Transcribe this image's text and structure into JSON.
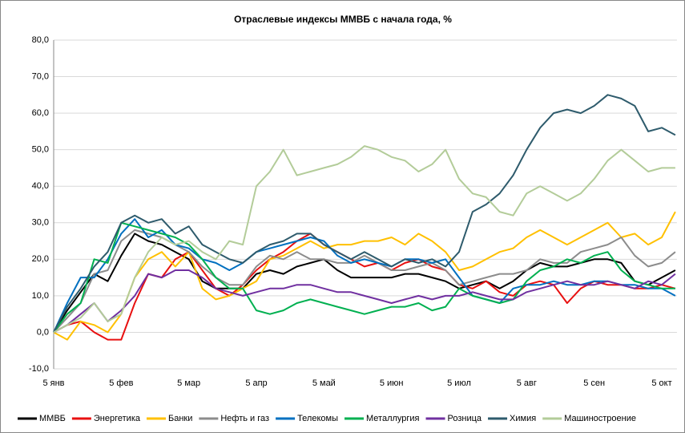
{
  "chart_data": {
    "type": "line",
    "title": "Отраслевые индексы ММВБ с начала года, %",
    "categories": [
      "5 янв",
      null,
      null,
      null,
      null,
      "5 фев",
      null,
      null,
      null,
      null,
      "5 мар",
      null,
      null,
      null,
      null,
      "5 апр",
      null,
      null,
      null,
      null,
      "5 май",
      null,
      null,
      null,
      null,
      "5 июн",
      null,
      null,
      null,
      null,
      "5 июл",
      null,
      null,
      null,
      null,
      "5 авг",
      null,
      null,
      null,
      null,
      "5 сен",
      null,
      null,
      null,
      null,
      "5 окт",
      null
    ],
    "ylim": [
      -10,
      80
    ],
    "yticks": [
      {
        "value": -10,
        "label": "-10,0"
      },
      {
        "value": 0,
        "label": "0,0"
      },
      {
        "value": 10,
        "label": "10,0"
      },
      {
        "value": 20,
        "label": "20,0"
      },
      {
        "value": 30,
        "label": "30,0"
      },
      {
        "value": 40,
        "label": "40,0"
      },
      {
        "value": 50,
        "label": "50,0"
      },
      {
        "value": 60,
        "label": "60,0"
      },
      {
        "value": 70,
        "label": "70,0"
      },
      {
        "value": 80,
        "label": "80,0"
      }
    ],
    "grid": true,
    "legend": "bottom",
    "series": [
      {
        "name": "ММВБ",
        "color": "#000000",
        "values": [
          0,
          6,
          11,
          16,
          14,
          21,
          27,
          25,
          24,
          22,
          20,
          14,
          12,
          12,
          12,
          16,
          17,
          16,
          18,
          19,
          20,
          17,
          15,
          15,
          15,
          15,
          16,
          16,
          15,
          14,
          12,
          13,
          14,
          12,
          14,
          17,
          19,
          18,
          18,
          19,
          20,
          20,
          19,
          14,
          13,
          15,
          17
        ]
      },
      {
        "name": "Энергетика",
        "color": "#e81010",
        "values": [
          0,
          2,
          3,
          0,
          -2,
          -2,
          8,
          16,
          15,
          20,
          22,
          17,
          12,
          10,
          13,
          17,
          20,
          22,
          25,
          27,
          24,
          22,
          20,
          18,
          19,
          17,
          19,
          20,
          18,
          17,
          13,
          12,
          14,
          11,
          10,
          13,
          14,
          13,
          8,
          12,
          14,
          13,
          13,
          12,
          12,
          13,
          12
        ]
      },
      {
        "name": "Банки",
        "color": "#ffc000",
        "values": [
          0,
          -2,
          3,
          2,
          0,
          5,
          15,
          20,
          22,
          18,
          22,
          12,
          9,
          10,
          12,
          14,
          20,
          21,
          23,
          25,
          23,
          24,
          24,
          25,
          25,
          26,
          24,
          27,
          25,
          22,
          17,
          18,
          20,
          22,
          23,
          26,
          28,
          26,
          24,
          26,
          28,
          30,
          26,
          27,
          24,
          26,
          33
        ]
      },
      {
        "name": "Нефть и газ",
        "color": "#8c8c8c",
        "values": [
          0,
          4,
          8,
          16,
          17,
          25,
          28,
          27,
          26,
          24,
          22,
          18,
          15,
          13,
          13,
          18,
          21,
          20,
          22,
          20,
          20,
          19,
          19,
          21,
          19,
          17,
          17,
          18,
          19,
          17,
          13,
          14,
          15,
          16,
          16,
          17,
          20,
          19,
          19,
          22,
          23,
          24,
          26,
          21,
          18,
          19,
          22
        ]
      },
      {
        "name": "Телекомы",
        "color": "#0070c0",
        "values": [
          0,
          8,
          15,
          15,
          20,
          27,
          31,
          26,
          28,
          24,
          23,
          20,
          19,
          17,
          19,
          22,
          23,
          24,
          25,
          26,
          25,
          21,
          19,
          20,
          19,
          18,
          20,
          20,
          19,
          20,
          15,
          10,
          9,
          8,
          12,
          13,
          13,
          14,
          13,
          13,
          14,
          14,
          13,
          13,
          12,
          12,
          10
        ]
      },
      {
        "name": "Металлургия",
        "color": "#00b050",
        "values": [
          0,
          5,
          8,
          20,
          19,
          30,
          29,
          28,
          27,
          26,
          24,
          20,
          15,
          12,
          12,
          6,
          5,
          6,
          8,
          9,
          8,
          7,
          6,
          5,
          6,
          7,
          7,
          8,
          6,
          7,
          12,
          10,
          9,
          8,
          9,
          14,
          17,
          18,
          20,
          19,
          21,
          22,
          17,
          14,
          13,
          12,
          12
        ]
      },
      {
        "name": "Розница",
        "color": "#7030a0",
        "values": [
          0,
          2,
          5,
          8,
          3,
          6,
          10,
          16,
          15,
          17,
          17,
          15,
          12,
          11,
          10,
          11,
          12,
          12,
          13,
          13,
          12,
          11,
          11,
          10,
          9,
          8,
          9,
          10,
          9,
          10,
          10,
          11,
          10,
          9,
          9,
          11,
          12,
          13,
          14,
          13,
          13,
          14,
          13,
          12,
          14,
          13,
          16
        ]
      },
      {
        "name": "Химия",
        "color": "#2e5b6c",
        "values": [
          0,
          7,
          12,
          18,
          22,
          30,
          32,
          30,
          31,
          27,
          29,
          24,
          22,
          20,
          19,
          22,
          24,
          25,
          27,
          27,
          24,
          22,
          20,
          22,
          20,
          18,
          20,
          19,
          20,
          18,
          22,
          33,
          35,
          38,
          43,
          50,
          56,
          60,
          61,
          60,
          62,
          65,
          64,
          62,
          55,
          56,
          54
        ]
      },
      {
        "name": "Машиностроение",
        "color": "#b3cc99",
        "values": [
          0,
          2,
          4,
          8,
          3,
          5,
          15,
          22,
          26,
          24,
          25,
          22,
          20,
          25,
          24,
          40,
          44,
          50,
          43,
          44,
          45,
          46,
          48,
          51,
          50,
          48,
          47,
          44,
          46,
          50,
          42,
          38,
          37,
          33,
          32,
          38,
          40,
          38,
          36,
          38,
          42,
          47,
          50,
          47,
          44,
          45,
          45
        ]
      }
    ]
  }
}
